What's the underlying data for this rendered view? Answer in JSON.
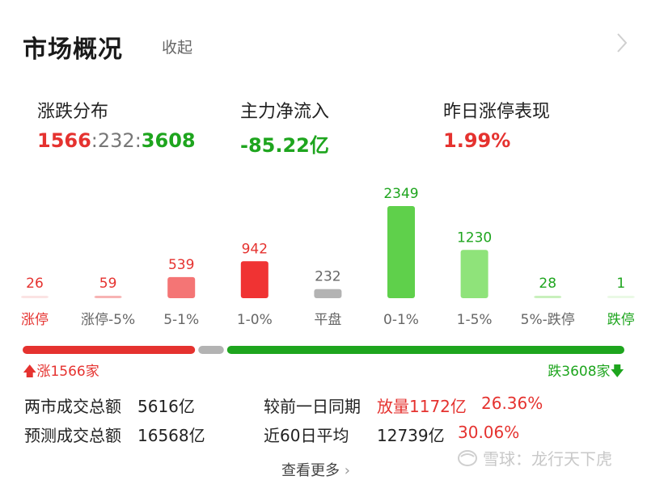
{
  "header": {
    "title": "市场概况",
    "collapse_label": "收起"
  },
  "stats": {
    "distribution": {
      "label": "涨跌分布",
      "up": "1566",
      "flat": "232",
      "down": "3608",
      "sep": ":"
    },
    "main_flow": {
      "label": "主力净流入",
      "value": "-85.22亿"
    },
    "yesterday_limit_up": {
      "label": "昨日涨停表现",
      "value": "1.99%"
    }
  },
  "chart_data": {
    "type": "bar",
    "categories": [
      "涨停",
      "涨停-5%",
      "5-1%",
      "1-0%",
      "平盘",
      "0-1%",
      "1-5%",
      "5%-跌停",
      "跌停"
    ],
    "values": [
      26,
      59,
      539,
      942,
      232,
      2349,
      1230,
      28,
      1
    ],
    "colors": [
      "#fbe3e3",
      "#f7b3b3",
      "#f47575",
      "#f03333",
      "#b3b3b3",
      "#5fd04b",
      "#8fe37a",
      "#c8f0bc",
      "#eaf9e5"
    ],
    "label_colors": [
      "#e5322f",
      "#e5322f",
      "#e5322f",
      "#e5322f",
      "#666666",
      "#1ea51e",
      "#1ea51e",
      "#1ea51e",
      "#1ea51e"
    ],
    "category_label_colors": [
      "#e5322f",
      "#666666",
      "#666666",
      "#666666",
      "#666666",
      "#666666",
      "#666666",
      "#666666",
      "#1ea51e"
    ]
  },
  "progress": {
    "up_label": "涨1566家",
    "down_label": "跌3608家",
    "up": 1566,
    "flat": 232,
    "down": 3608,
    "up_color": "#e5322f",
    "flat_color": "#b3b3b3",
    "down_color": "#1ea51e"
  },
  "turnover": {
    "row1": {
      "label": "两市成交总额",
      "value": "5616亿",
      "compare_label": "较前一日同期",
      "change": "放量1172亿",
      "pct": "26.36%"
    },
    "row2": {
      "label": "预测成交总额",
      "value": "16568亿",
      "compare_label": "近60日平均",
      "change": "12739亿",
      "pct": "30.06%"
    }
  },
  "more_label": "查看更多",
  "watermark": {
    "text": "雪球：龙行天下虎"
  }
}
